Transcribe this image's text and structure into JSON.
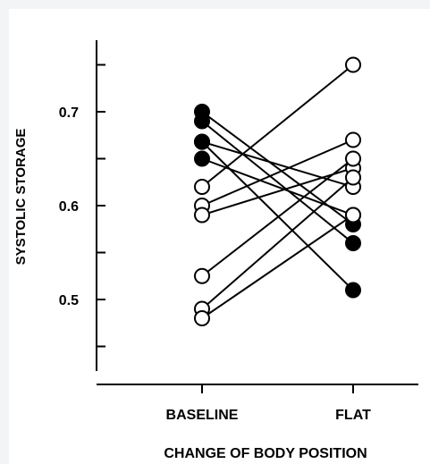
{
  "chart_data": {
    "type": "line",
    "title": "",
    "xlabel": "CHANGE OF BODY POSITION",
    "ylabel": "SYSTOLIC STORAGE",
    "categories": [
      "BASELINE",
      "FLAT"
    ],
    "y_ticks": [
      "0.5",
      "0.6",
      "0.7"
    ],
    "ylim": [
      0.425,
      0.78
    ],
    "grid": false,
    "legend": "none",
    "marker_colors": {
      "filled": "#000000",
      "open": "#ffffff"
    },
    "series": [
      {
        "values": [
          0.7,
          0.58
        ],
        "baseline_marker": "filled",
        "flat_marker": "filled"
      },
      {
        "values": [
          0.69,
          0.56
        ],
        "baseline_marker": "filled",
        "flat_marker": "filled"
      },
      {
        "values": [
          0.668,
          0.62
        ],
        "baseline_marker": "filled",
        "flat_marker": "open"
      },
      {
        "values": [
          0.668,
          0.51
        ],
        "baseline_marker": "filled",
        "flat_marker": "filled"
      },
      {
        "values": [
          0.65,
          0.59
        ],
        "baseline_marker": "filled",
        "flat_marker": "open"
      },
      {
        "values": [
          0.62,
          0.75
        ],
        "baseline_marker": "open",
        "flat_marker": "open"
      },
      {
        "values": [
          0.6,
          0.67
        ],
        "baseline_marker": "open",
        "flat_marker": "open"
      },
      {
        "values": [
          0.59,
          0.64
        ],
        "baseline_marker": "open",
        "flat_marker": "open"
      },
      {
        "values": [
          0.525,
          0.65
        ],
        "baseline_marker": "open",
        "flat_marker": "open"
      },
      {
        "values": [
          0.49,
          0.63
        ],
        "baseline_marker": "open",
        "flat_marker": "open"
      },
      {
        "values": [
          0.48,
          0.59
        ],
        "baseline_marker": "open",
        "flat_marker": "open"
      }
    ]
  }
}
